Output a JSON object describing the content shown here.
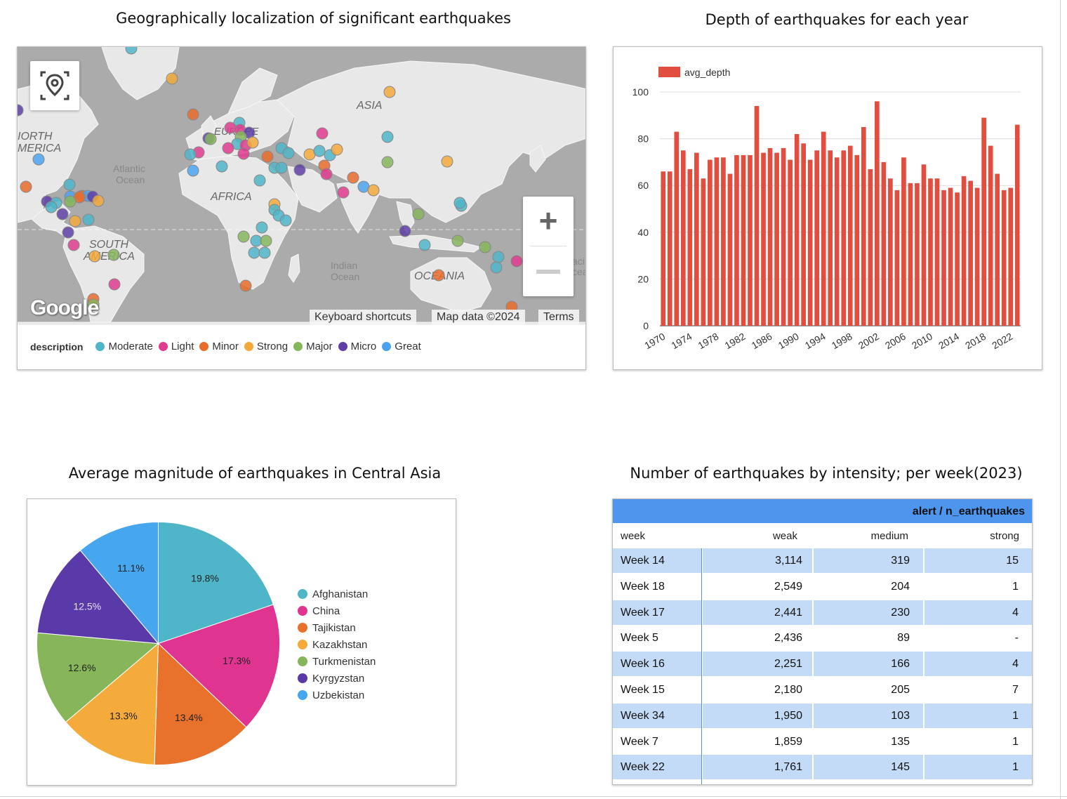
{
  "titles": {
    "map": "Geographically localization of significant earthquakes",
    "bar": "Depth of earthquakes for each year",
    "pie": "Average magnitude of earthquakes in Central Asia",
    "table": "Number of earthquakes by intensity; per week(2023)"
  },
  "map": {
    "labels": {
      "north_america": "IORTH",
      "north_america2": "MERICA",
      "atlantic": "Atlantic",
      "atlantic2": "Ocean",
      "europe": "EUROPE",
      "asia": "ASIA",
      "africa": "AFRICA",
      "south_america": "SOUTH",
      "south_america2": "AMERICA",
      "indian": "Indian",
      "indian2": "Ocean",
      "oceania": "OCEANIA",
      "paci": "aci",
      "paci2": "cea"
    },
    "attribution": {
      "keyboard": "Keyboard shortcuts",
      "mapdata": "Map data ©2024",
      "terms": "Terms"
    },
    "logo": "Google",
    "zoom_in": "+",
    "legend_title": "description",
    "legend": [
      {
        "name": "Moderate",
        "color": "#4fb5c8"
      },
      {
        "name": "Light",
        "color": "#df3b8f"
      },
      {
        "name": "Minor",
        "color": "#e86c2c"
      },
      {
        "name": "Strong",
        "color": "#f2a93b"
      },
      {
        "name": "Major",
        "color": "#86b65a"
      },
      {
        "name": "Micro",
        "color": "#5e3ea6"
      },
      {
        "name": "Great",
        "color": "#4aa3ee"
      }
    ]
  },
  "chart_data": [
    {
      "type": "bar",
      "title": "Depth of earthquakes for each year",
      "series": [
        {
          "name": "avg_depth",
          "color": "#e14d3f",
          "values": [
            66,
            66,
            83,
            75,
            67,
            74,
            63,
            71,
            72,
            72,
            65,
            73,
            73,
            73,
            94,
            74,
            76,
            74,
            76,
            71,
            82,
            78,
            71,
            75,
            83,
            75,
            72,
            75,
            77,
            73,
            85,
            67,
            96,
            70,
            63,
            58,
            72,
            61,
            61,
            69,
            63,
            63,
            58,
            59,
            57,
            64,
            62,
            59,
            89,
            77,
            65,
            58,
            59,
            86
          ]
        }
      ],
      "x": [
        1970,
        1971,
        1972,
        1973,
        1974,
        1975,
        1976,
        1977,
        1978,
        1979,
        1980,
        1981,
        1982,
        1983,
        1984,
        1985,
        1986,
        1987,
        1988,
        1989,
        1990,
        1991,
        1992,
        1993,
        1994,
        1995,
        1996,
        1997,
        1998,
        1999,
        2000,
        2001,
        2002,
        2003,
        2004,
        2005,
        2006,
        2007,
        2008,
        2009,
        2010,
        2011,
        2012,
        2013,
        2014,
        2015,
        2016,
        2017,
        2018,
        2019,
        2020,
        2021,
        2022,
        2023
      ],
      "x_tick_labels": [
        "1970",
        "1974",
        "1978",
        "1982",
        "1986",
        "1990",
        "1994",
        "1998",
        "2002",
        "2006",
        "2010",
        "2014",
        "2018",
        "2022"
      ],
      "y_ticks": [
        0,
        20,
        40,
        60,
        80,
        100
      ],
      "ylim": [
        0,
        100
      ],
      "grid": true,
      "legend": "top-left"
    },
    {
      "type": "pie",
      "title": "Average magnitude of earthquakes in Central Asia",
      "slices": [
        {
          "name": "Afghanistan",
          "value": 19.8,
          "label": "19.8%",
          "color": "#4fb5c8"
        },
        {
          "name": "China",
          "value": 17.3,
          "label": "17.3%",
          "color": "#df3590"
        },
        {
          "name": "Tajikistan",
          "value": 13.4,
          "label": "13.4%",
          "color": "#e8722c"
        },
        {
          "name": "Kazakhstan",
          "value": 13.3,
          "label": "13.3%",
          "color": "#f4ab3c"
        },
        {
          "name": "Turkmenistan",
          "value": 12.6,
          "label": "12.6%",
          "color": "#86b55a"
        },
        {
          "name": "Kyrgyzstan",
          "value": 12.5,
          "label": "12.5%",
          "color": "#5a3aa8"
        },
        {
          "name": "Uzbekistan",
          "value": 11.1,
          "label": "11.1%",
          "color": "#46a6ee"
        }
      ],
      "legend": "right"
    },
    {
      "type": "table",
      "title": "Number of earthquakes by intensity; per week(2023)",
      "header_group": "alert / n_earthquakes",
      "columns": [
        "week",
        "weak",
        "medium",
        "strong"
      ],
      "rows": [
        [
          "Week 14",
          "3,114",
          "319",
          "15"
        ],
        [
          "Week 18",
          "2,549",
          "204",
          "1"
        ],
        [
          "Week 17",
          "2,441",
          "230",
          "4"
        ],
        [
          "Week 5",
          "2,436",
          "89",
          "-"
        ],
        [
          "Week 16",
          "2,251",
          "166",
          "4"
        ],
        [
          "Week 15",
          "2,180",
          "205",
          "7"
        ],
        [
          "Week 34",
          "1,950",
          "103",
          "1"
        ],
        [
          "Week 7",
          "1,859",
          "135",
          "1"
        ],
        [
          "Week 22",
          "1,761",
          "145",
          "1"
        ]
      ]
    }
  ]
}
